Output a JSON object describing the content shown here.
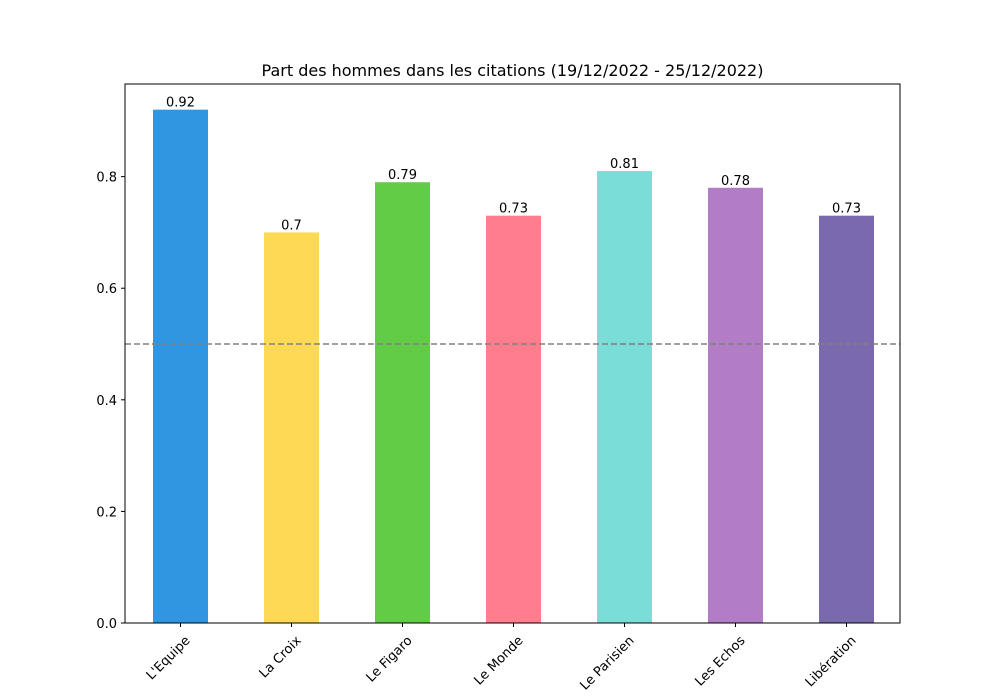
{
  "chart_data": {
    "type": "bar",
    "title": "Part des hommes dans les citations (19/12/2022 - 25/12/2022)",
    "xlabel": "",
    "ylabel": "",
    "categories": [
      "L'Equipe",
      "La Croix",
      "Le Figaro",
      "Le Monde",
      "Le Parisien",
      "Les Echos",
      "Libération"
    ],
    "values": [
      0.92,
      0.7,
      0.79,
      0.73,
      0.81,
      0.78,
      0.73
    ],
    "value_labels": [
      "0.92",
      "0.7",
      "0.79",
      "0.73",
      "0.81",
      "0.78",
      "0.73"
    ],
    "colors": [
      "#3196e2",
      "#fed956",
      "#62cc47",
      "#ff7d8c",
      "#7bddd8",
      "#b37cc6",
      "#7a69ad"
    ],
    "ylim": [
      0,
      0.966
    ],
    "yticks": [
      0.0,
      0.2,
      0.4,
      0.6,
      0.8
    ],
    "ytick_labels": [
      "0.0",
      "0.2",
      "0.4",
      "0.6",
      "0.8"
    ],
    "reference_line": {
      "value": 0.5,
      "style": "dashed",
      "color": "#808080"
    },
    "grid": false,
    "legend": "none"
  }
}
